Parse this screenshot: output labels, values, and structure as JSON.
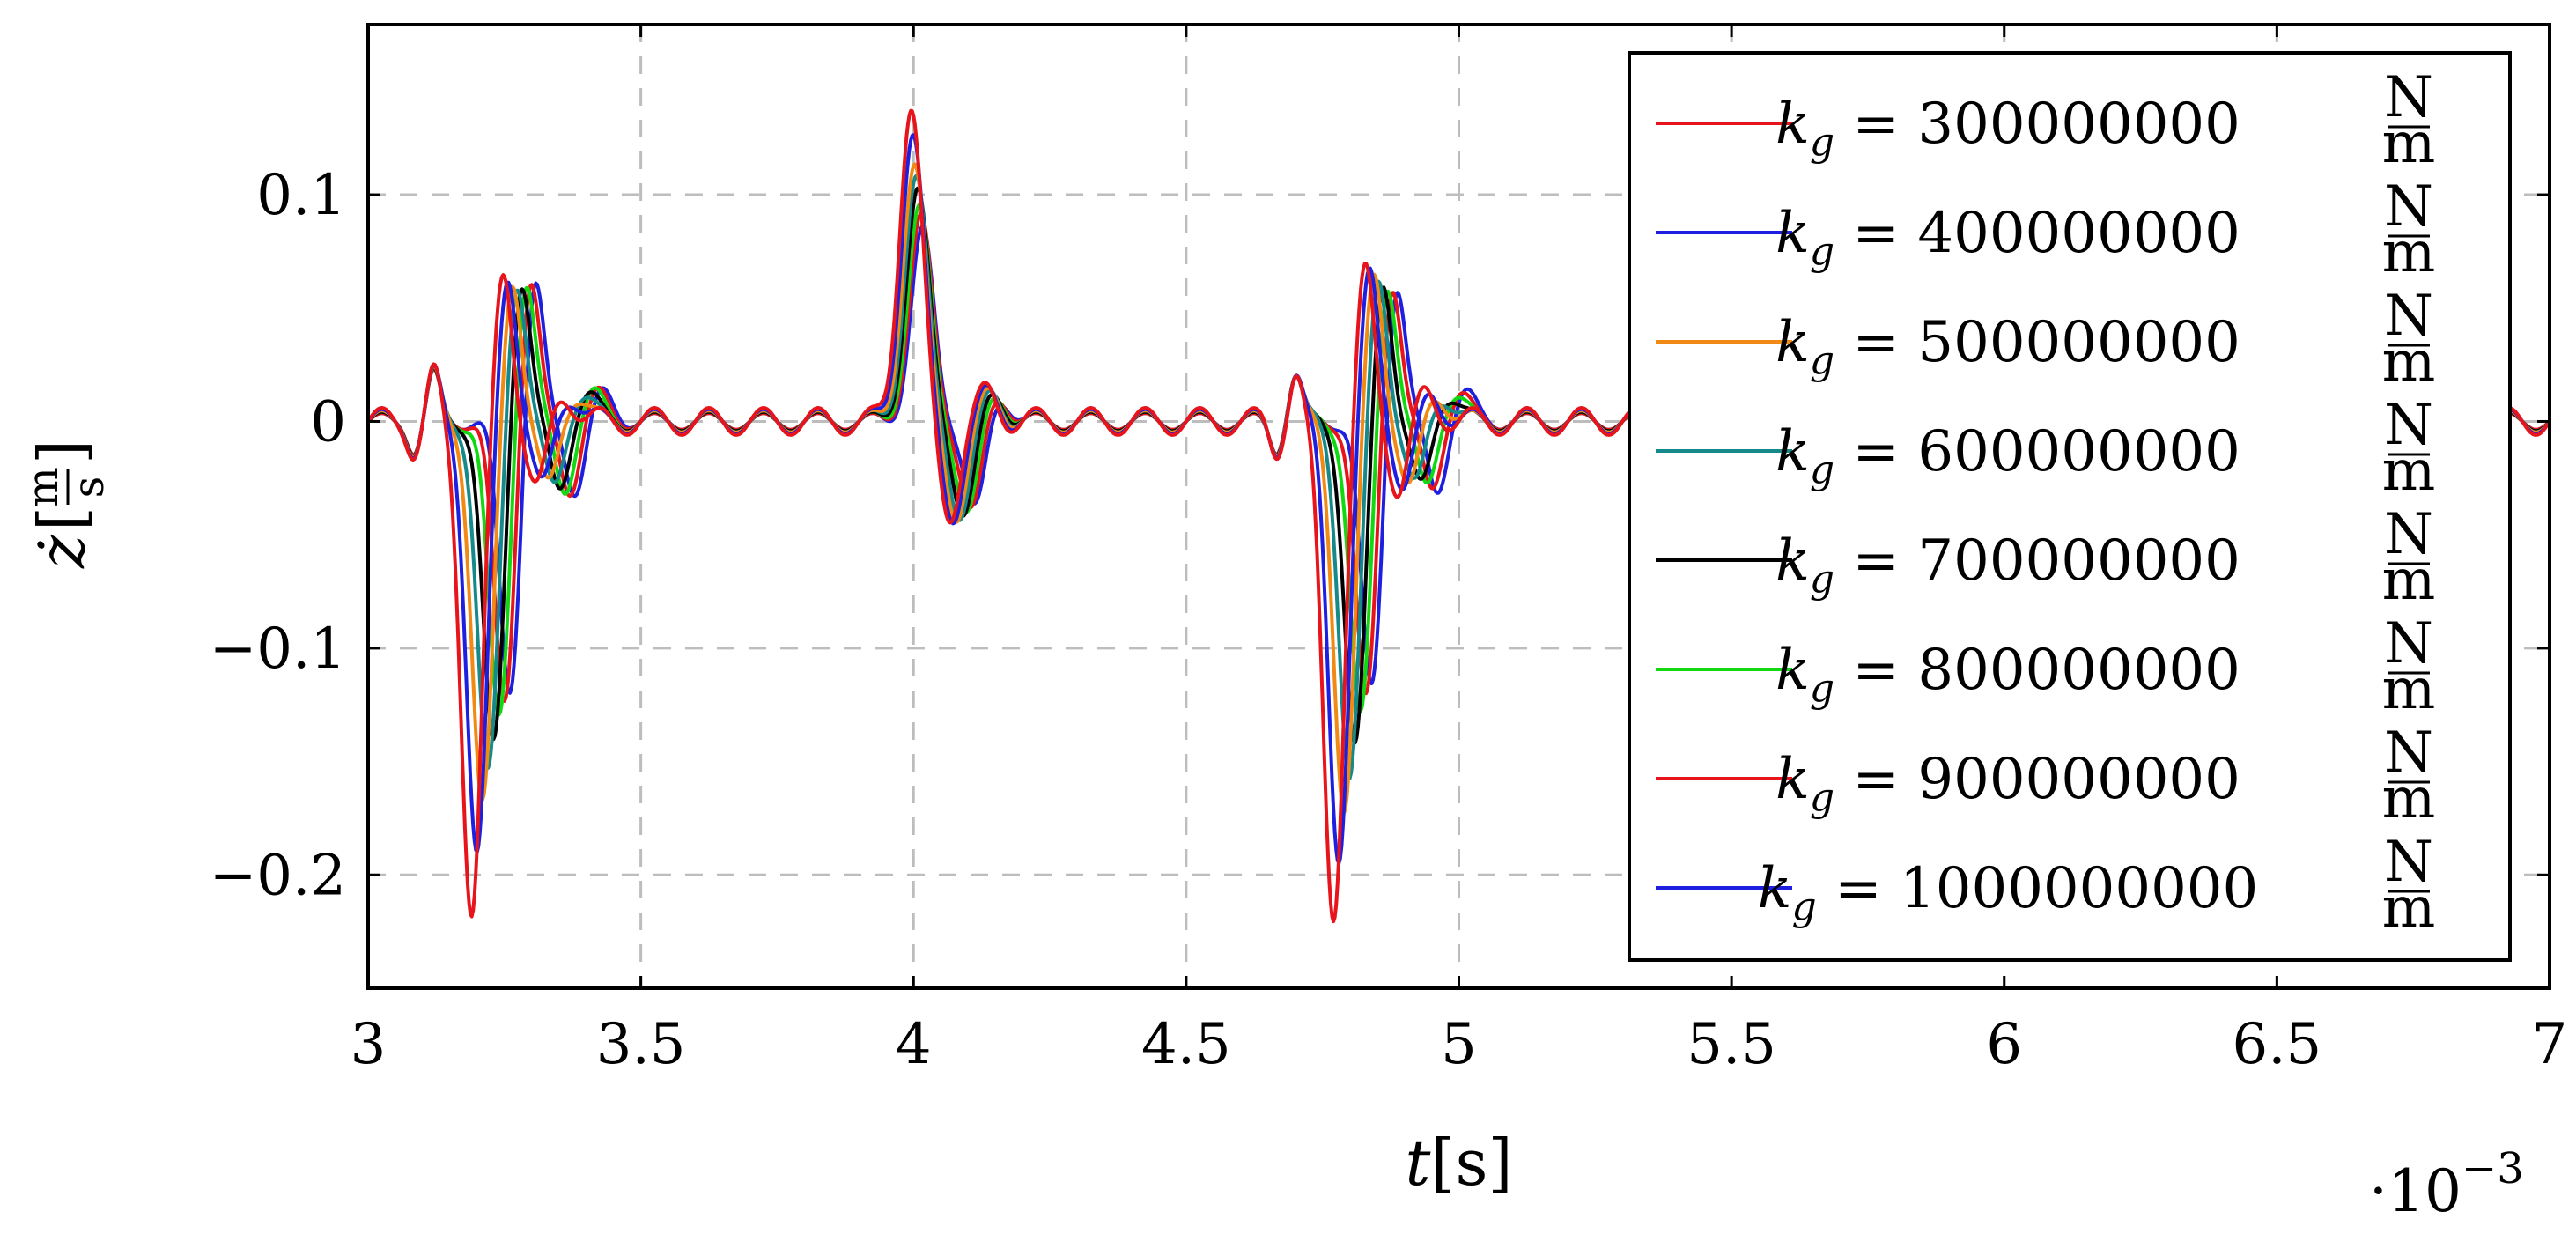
{
  "chart_data": {
    "type": "line",
    "title": "",
    "xlabel": {
      "symbol": "t",
      "unit": "s"
    },
    "ylabel": {
      "symbol": "ż",
      "unit_num": "m",
      "unit_den": "s"
    },
    "x_scale_note": {
      "base": "·10",
      "exponent": "−3"
    },
    "xlim": [
      3,
      7
    ],
    "ylim": [
      -0.25,
      0.175
    ],
    "xticks": [
      3,
      3.5,
      4,
      4.5,
      5,
      5.5,
      6,
      6.5,
      7
    ],
    "xtick_labels": [
      "3",
      "3.5",
      "4",
      "4.5",
      "5",
      "5.5",
      "6",
      "6.5",
      "7"
    ],
    "yticks": [
      -0.2,
      -0.1,
      0,
      0.1
    ],
    "ytick_labels": [
      "−0.2",
      "−0.1",
      "0",
      "0.1"
    ],
    "grid": true,
    "legend_position": "top-right",
    "legend_unit": {
      "num": "N",
      "den": "m"
    },
    "series": [
      {
        "name": "k_g = 300000000 N/m",
        "label_var": "k",
        "label_sub": "g",
        "label_value": "300000000",
        "color": "#e8141b",
        "pos_peak": 0.139,
        "neg_trough": -0.215,
        "ring": 0.01
      },
      {
        "name": "k_g = 400000000 N/m",
        "label_var": "k",
        "label_sub": "g",
        "label_value": "400000000",
        "color": "#1f1fe0",
        "pos_peak": 0.127,
        "neg_trough": -0.19,
        "ring": 0.009
      },
      {
        "name": "k_g = 500000000 N/m",
        "label_var": "k",
        "label_sub": "g",
        "label_value": "500000000",
        "color": "#f08a14",
        "pos_peak": 0.113,
        "neg_trough": -0.17,
        "ring": 0.008
      },
      {
        "name": "k_g = 600000000 N/m",
        "label_var": "k",
        "label_sub": "g",
        "label_value": "600000000",
        "color": "#168a8a",
        "pos_peak": 0.107,
        "neg_trough": -0.158,
        "ring": 0.008
      },
      {
        "name": "k_g = 700000000 N/m",
        "label_var": "k",
        "label_sub": "g",
        "label_value": "700000000",
        "color": "#000000",
        "pos_peak": 0.101,
        "neg_trough": -0.145,
        "ring": 0.007
      },
      {
        "name": "k_g = 800000000 N/m",
        "label_var": "k",
        "label_sub": "g",
        "label_value": "800000000",
        "color": "#12d812",
        "pos_peak": 0.093,
        "neg_trough": -0.133,
        "ring": 0.007
      },
      {
        "name": "k_g = 900000000 N/m",
        "label_var": "k",
        "label_sub": "g",
        "label_value": "900000000",
        "color": "#e8141b",
        "pos_peak": 0.089,
        "neg_trough": -0.125,
        "ring": 0.006
      },
      {
        "name": "k_g = 1000000000 N/m",
        "label_var": "k",
        "label_sub": "g",
        "label_value": "1000000000",
        "color": "#1f1fe0",
        "pos_peak": 0.083,
        "neg_trough": -0.12,
        "ring": 0.006
      }
    ],
    "events": [
      {
        "type": "neg",
        "x": 3.19
      },
      {
        "type": "pos",
        "x": 3.995
      },
      {
        "type": "neg",
        "x": 4.77
      }
    ]
  }
}
